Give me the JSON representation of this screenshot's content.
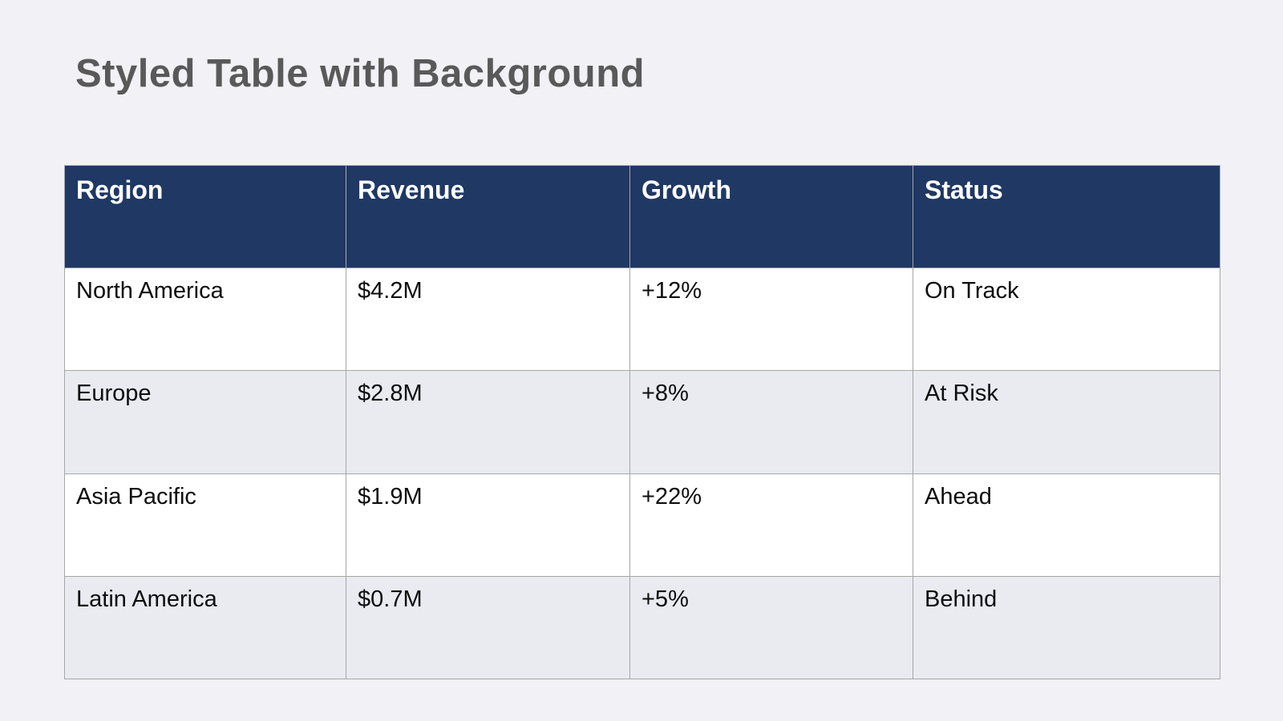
{
  "page": {
    "title": "Styled Table with Background",
    "background_color": "#f1f1f6",
    "title_color": "#595959"
  },
  "table": {
    "header_bg_color": "#1f3864",
    "header_text_color": "#ffffff",
    "row_white_color": "#ffffff",
    "row_alt_color": "#e9ebf1",
    "border_color": "#a6a6a6",
    "columns": [
      "Region",
      "Revenue",
      "Growth",
      "Status"
    ],
    "rows": [
      [
        "North America",
        "$4.2M",
        "+12%",
        "On Track"
      ],
      [
        "Europe",
        "$2.8M",
        "+8%",
        "At Risk"
      ],
      [
        "Asia Pacific",
        "$1.9M",
        "+22%",
        "Ahead"
      ],
      [
        "Latin America",
        "$0.7M",
        "+5%",
        "Behind"
      ]
    ]
  }
}
